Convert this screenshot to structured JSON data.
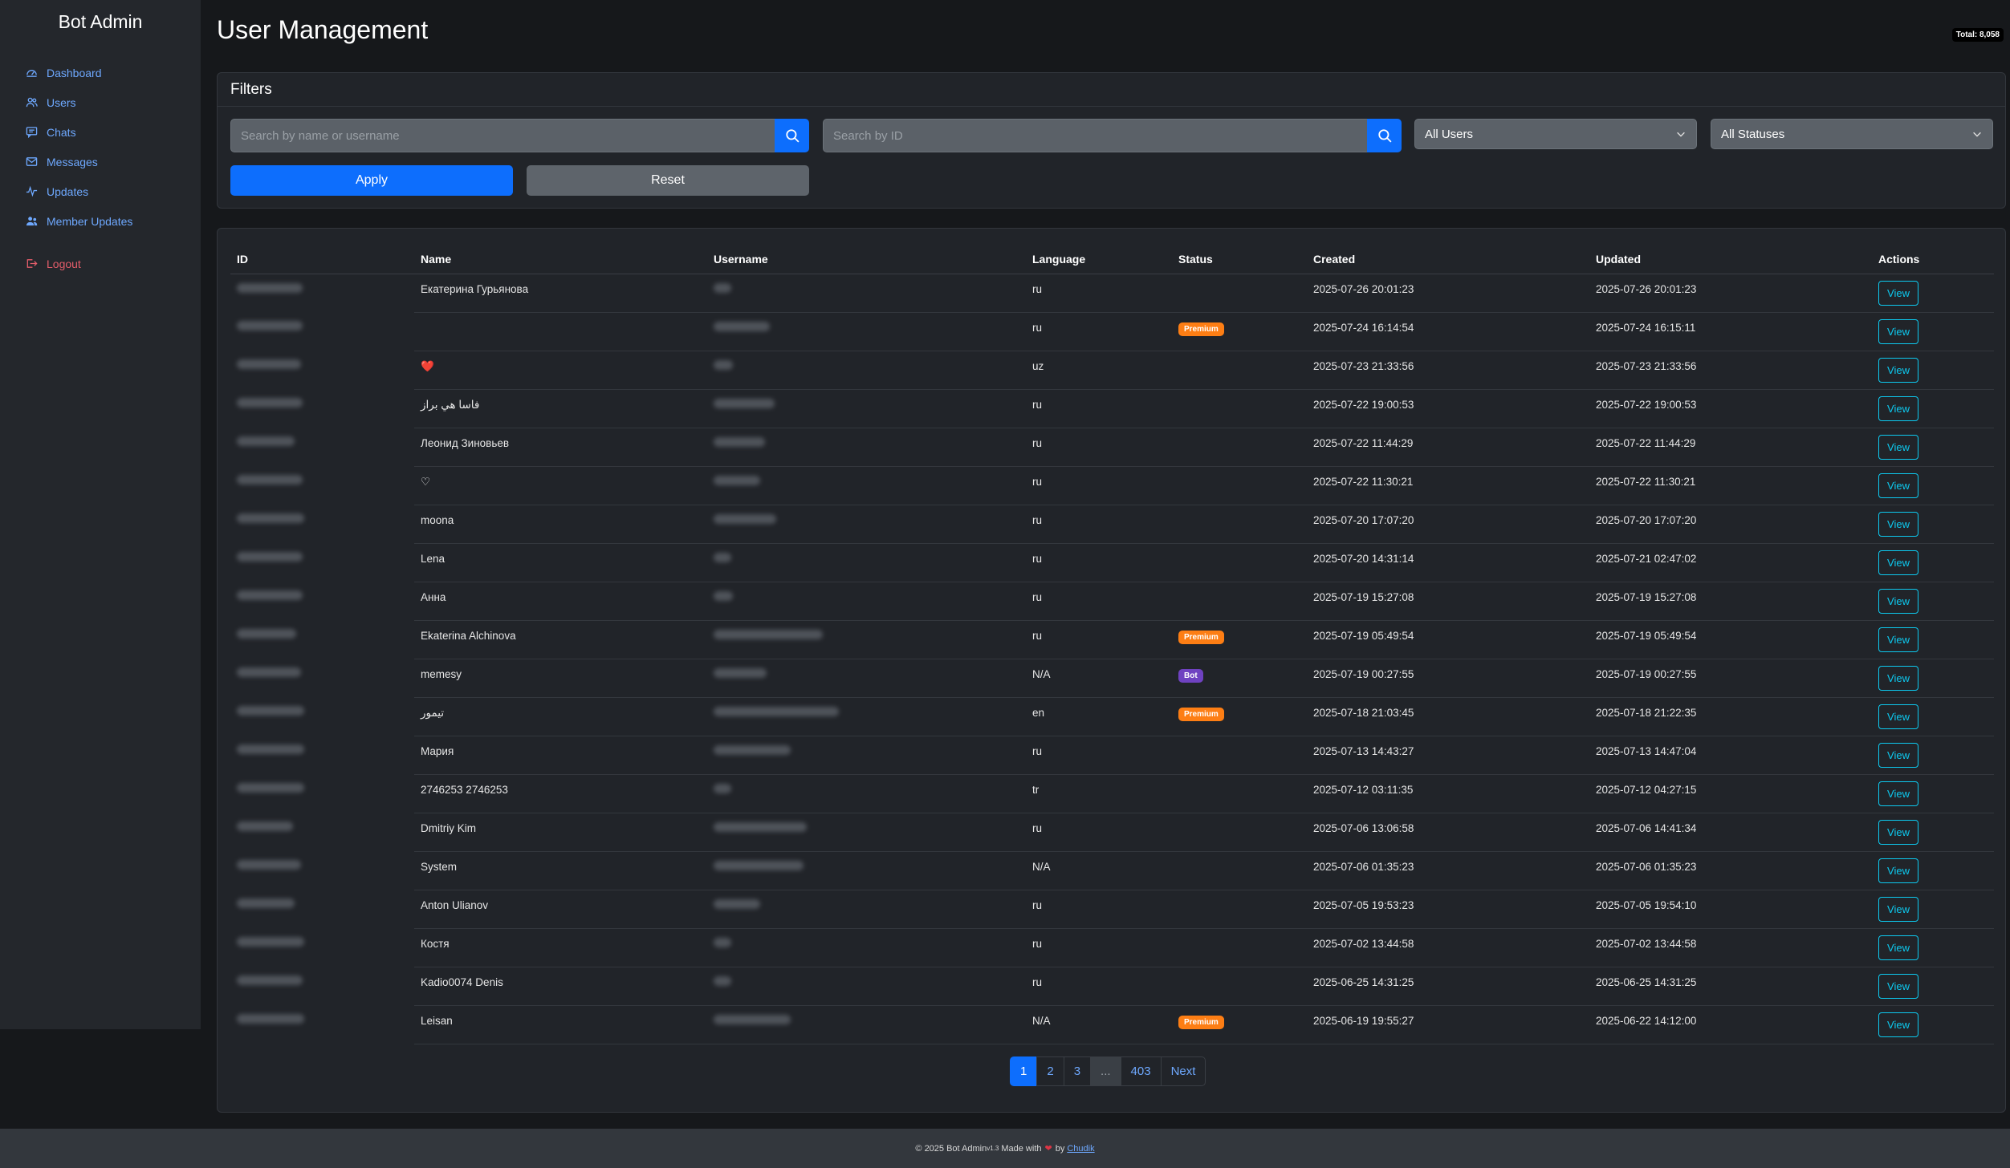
{
  "sidebar": {
    "brand": "Bot Admin",
    "items": [
      {
        "label": "Dashboard",
        "icon": "gauge-icon"
      },
      {
        "label": "Users",
        "icon": "users-icon"
      },
      {
        "label": "Chats",
        "icon": "chat-icon"
      },
      {
        "label": "Messages",
        "icon": "envelope-icon"
      },
      {
        "label": "Updates",
        "icon": "activity-icon"
      },
      {
        "label": "Member Updates",
        "icon": "member-icon"
      }
    ],
    "logout": "Logout"
  },
  "header": {
    "title": "User Management",
    "total": "Total: 8,058"
  },
  "filters": {
    "title": "Filters",
    "name_placeholder": "Search by name or username",
    "id_placeholder": "Search by ID",
    "users_select": "All Users",
    "status_select": "All Statuses",
    "apply": "Apply",
    "reset": "Reset"
  },
  "table": {
    "headers": [
      "ID",
      "Name",
      "Username",
      "Language",
      "Status",
      "Created",
      "Updated",
      "Actions"
    ],
    "view_label": "View",
    "rows": [
      {
        "name": "Екатерина Гурьянова",
        "lang": "ru",
        "status": "",
        "created": "2025-07-26 20:01:23",
        "updated": "2025-07-26 20:01:23"
      },
      {
        "name": "",
        "lang": "ru",
        "status": "Premium",
        "created": "2025-07-24 16:14:54",
        "updated": "2025-07-24 16:15:11"
      },
      {
        "name": "❤️",
        "lang": "uz",
        "status": "",
        "created": "2025-07-23 21:33:56",
        "updated": "2025-07-23 21:33:56"
      },
      {
        "name": "فاسا هي براز",
        "lang": "ru",
        "status": "",
        "created": "2025-07-22 19:00:53",
        "updated": "2025-07-22 19:00:53"
      },
      {
        "name": "Леонид Зиновьев",
        "lang": "ru",
        "status": "",
        "created": "2025-07-22 11:44:29",
        "updated": "2025-07-22 11:44:29"
      },
      {
        "name": "♡",
        "lang": "ru",
        "status": "",
        "created": "2025-07-22 11:30:21",
        "updated": "2025-07-22 11:30:21"
      },
      {
        "name": "moona",
        "lang": "ru",
        "status": "",
        "created": "2025-07-20 17:07:20",
        "updated": "2025-07-20 17:07:20"
      },
      {
        "name": "Lena",
        "lang": "ru",
        "status": "",
        "created": "2025-07-20 14:31:14",
        "updated": "2025-07-21 02:47:02"
      },
      {
        "name": "Анна",
        "lang": "ru",
        "status": "",
        "created": "2025-07-19 15:27:08",
        "updated": "2025-07-19 15:27:08"
      },
      {
        "name": "Ekaterina Alchinova",
        "lang": "ru",
        "status": "Premium",
        "created": "2025-07-19 05:49:54",
        "updated": "2025-07-19 05:49:54"
      },
      {
        "name": "memesy",
        "lang": "N/A",
        "status": "Bot",
        "created": "2025-07-19 00:27:55",
        "updated": "2025-07-19 00:27:55"
      },
      {
        "name": "تيمور",
        "lang": "en",
        "status": "Premium",
        "created": "2025-07-18 21:03:45",
        "updated": "2025-07-18 21:22:35"
      },
      {
        "name": "Мария",
        "lang": "ru",
        "status": "",
        "created": "2025-07-13 14:43:27",
        "updated": "2025-07-13 14:47:04"
      },
      {
        "name": "2746253 2746253",
        "lang": "tr",
        "status": "",
        "created": "2025-07-12 03:11:35",
        "updated": "2025-07-12 04:27:15"
      },
      {
        "name": "Dmitriy Kim",
        "lang": "ru",
        "status": "",
        "created": "2025-07-06 13:06:58",
        "updated": "2025-07-06 14:41:34"
      },
      {
        "name": "System",
        "lang": "N/A",
        "status": "",
        "created": "2025-07-06 01:35:23",
        "updated": "2025-07-06 01:35:23"
      },
      {
        "name": "Anton Ulianov",
        "lang": "ru",
        "status": "",
        "created": "2025-07-05 19:53:23",
        "updated": "2025-07-05 19:54:10"
      },
      {
        "name": "Костя",
        "lang": "ru",
        "status": "",
        "created": "2025-07-02 13:44:58",
        "updated": "2025-07-02 13:44:58"
      },
      {
        "name": "Kadio0074 Denis",
        "lang": "ru",
        "status": "",
        "created": "2025-06-25 14:31:25",
        "updated": "2025-06-25 14:31:25"
      },
      {
        "name": "Leisan",
        "lang": "N/A",
        "status": "Premium",
        "created": "2025-06-19 19:55:27",
        "updated": "2025-06-22 14:12:00"
      }
    ]
  },
  "pagination": {
    "pages": [
      "1",
      "2",
      "3",
      "...",
      "403"
    ],
    "next": "Next",
    "current": "1"
  },
  "footer": {
    "prefix": "© 2025 Bot Admin",
    "version": "v1.3",
    "made_with": "Made with",
    "by": "by",
    "author": "Chudik"
  },
  "colors": {
    "accent": "#0d6efd",
    "premium": "#fd7e14",
    "bot": "#6f42c1",
    "view": "#0dcaf0",
    "logout": "#e35d6a"
  }
}
